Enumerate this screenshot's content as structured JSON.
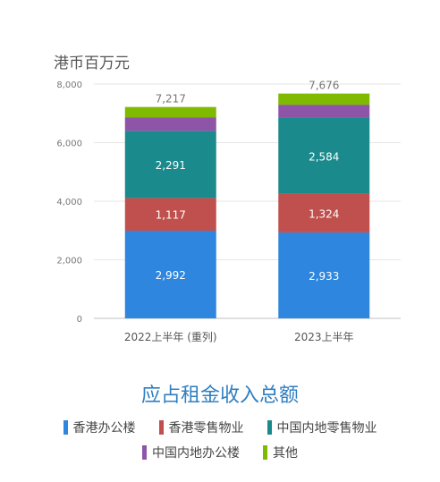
{
  "chart_data": {
    "type": "bar",
    "stacked": true,
    "unit_label": "港币百万元",
    "title": "应占租金收入总额",
    "categories": [
      "2022上半年 (重列)",
      "2023上半年"
    ],
    "yticks": [
      "0",
      "2,000",
      "4,000",
      "6,000",
      "8,000"
    ],
    "ylim": [
      0,
      8000
    ],
    "grid": true,
    "totals": [
      "7,217",
      "7,676"
    ],
    "series": [
      {
        "name": "香港办公楼",
        "color": "#2e86de",
        "values": [
          2992,
          2933
        ],
        "labels": [
          "2,992",
          "2,933"
        ]
      },
      {
        "name": "香港零售物业",
        "color": "#c0504d",
        "values": [
          1117,
          1324
        ],
        "labels": [
          "1,117",
          "1,324"
        ]
      },
      {
        "name": "中国内地零售物业",
        "color": "#1b8a8c",
        "values": [
          2291,
          2584
        ],
        "labels": [
          "2,291",
          "2,584"
        ]
      },
      {
        "name": "中国内地办公楼",
        "color": "#8e54a8",
        "values": [
          455,
          454
        ],
        "labels": [
          "",
          ""
        ]
      },
      {
        "name": "其他",
        "color": "#7fba00",
        "values": [
          362,
          381
        ],
        "labels": [
          "",
          ""
        ]
      }
    ],
    "legend_position": "bottom"
  }
}
